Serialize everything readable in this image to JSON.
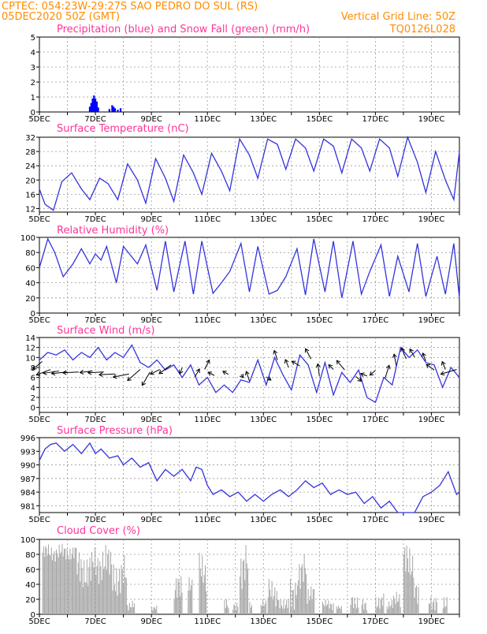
{
  "header": {
    "line1": "CPTEC:   054:23W-29:27S  SAO PEDRO DO SUL (RS)",
    "line2": "05DEC2020 50Z (GMT)",
    "grid_note": "Vertical Grid Line: 50Z",
    "code": "TQ0126L028"
  },
  "colors": {
    "precip": "#0000ff",
    "snow": "#00aa00",
    "line": "#3333dd",
    "cloud": "#a6a6a6",
    "title": "#ff3399",
    "header": "#ff8c00"
  },
  "x_axis": {
    "tick_labels": [
      "5DEC",
      "7DEC",
      "9DEC",
      "11DEC",
      "13DEC",
      "15DEC",
      "17DEC",
      "19DEC"
    ],
    "range_days": [
      5,
      20
    ]
  },
  "chart_data": [
    {
      "type": "bar",
      "title": "Precipitation (blue) and Snow Fall (green) (mm/h)",
      "ylim": [
        0,
        5
      ],
      "yticks": [
        "0",
        "1",
        "2",
        "3",
        "4",
        "5"
      ],
      "series": [
        {
          "name": "Precipitation",
          "points": [
            [
              6.8,
              0.35
            ],
            [
              6.85,
              0.6
            ],
            [
              6.9,
              0.9
            ],
            [
              6.95,
              1.1
            ],
            [
              7.0,
              0.9
            ],
            [
              7.05,
              0.7
            ],
            [
              7.1,
              0.3
            ],
            [
              7.5,
              0.2
            ],
            [
              7.6,
              0.45
            ],
            [
              7.65,
              0.35
            ],
            [
              7.7,
              0.25
            ],
            [
              7.8,
              0.15
            ],
            [
              7.9,
              0.25
            ]
          ]
        },
        {
          "name": "Snow Fall",
          "points": []
        }
      ]
    },
    {
      "type": "line",
      "title": "Surface Temperature (nC)",
      "ylim": [
        11,
        32
      ],
      "yticks": [
        "12",
        "16",
        "20",
        "24",
        "28",
        "32"
      ],
      "x": [
        5,
        5.2,
        5.5,
        5.8,
        6.15,
        6.5,
        6.8,
        7.15,
        7.45,
        7.8,
        8.15,
        8.5,
        8.8,
        9.15,
        9.5,
        9.8,
        10.15,
        10.5,
        10.8,
        11.15,
        11.5,
        11.8,
        12.15,
        12.5,
        12.8,
        13.15,
        13.5,
        13.8,
        14.15,
        14.5,
        14.8,
        15.15,
        15.5,
        15.8,
        16.15,
        16.5,
        16.8,
        17.15,
        17.5,
        17.8,
        18.15,
        18.5,
        18.8,
        19.15,
        19.5,
        19.8,
        20
      ],
      "values": [
        17.5,
        13.2,
        11.5,
        19.5,
        22.0,
        17.5,
        14.5,
        20.5,
        19.0,
        14.5,
        24.5,
        20.0,
        13.5,
        26.0,
        20.5,
        14.0,
        27.0,
        22.0,
        16.0,
        27.5,
        22.5,
        17.0,
        31.5,
        27.0,
        20.5,
        31.5,
        30.0,
        23.0,
        31.5,
        29.0,
        22.5,
        31.5,
        29.5,
        22.0,
        31.5,
        29.0,
        22.5,
        31.5,
        29.0,
        21.0,
        32.0,
        25.0,
        16.5,
        28.0,
        20.0,
        14.5,
        28.0
      ]
    },
    {
      "type": "line",
      "title": "Relative Humidity (%)",
      "ylim": [
        0,
        100
      ],
      "yticks": [
        "0",
        "20",
        "40",
        "60",
        "80",
        "100"
      ],
      "x": [
        5,
        5.3,
        5.55,
        5.85,
        6.2,
        6.5,
        6.8,
        7.0,
        7.2,
        7.4,
        7.75,
        8.0,
        8.5,
        8.8,
        9.2,
        9.5,
        9.8,
        10.2,
        10.5,
        10.8,
        11.2,
        11.5,
        11.8,
        12.2,
        12.5,
        12.8,
        13.2,
        13.5,
        13.8,
        14.2,
        14.5,
        14.8,
        15.2,
        15.5,
        15.8,
        16.2,
        16.5,
        16.8,
        17.2,
        17.5,
        17.8,
        18.2,
        18.5,
        18.8,
        19.2,
        19.5,
        19.8,
        20
      ],
      "values": [
        60,
        98,
        80,
        48,
        65,
        85,
        65,
        78,
        70,
        88,
        40,
        88,
        65,
        90,
        30,
        95,
        28,
        95,
        25,
        95,
        26,
        40,
        55,
        92,
        28,
        88,
        25,
        30,
        48,
        85,
        24,
        98,
        28,
        95,
        20,
        95,
        25,
        55,
        90,
        22,
        75,
        28,
        92,
        22,
        75,
        25,
        92,
        20
      ]
    },
    {
      "type": "line",
      "title": "Surface Wind (m/s)",
      "ylim": [
        -1,
        14
      ],
      "yticks": [
        "0",
        "2",
        "4",
        "6",
        "8",
        "10",
        "12",
        "14"
      ],
      "x": [
        5,
        5.3,
        5.6,
        5.9,
        6.2,
        6.5,
        6.8,
        7.1,
        7.4,
        7.7,
        8.0,
        8.3,
        8.6,
        8.9,
        9.2,
        9.5,
        9.8,
        10.1,
        10.4,
        10.7,
        11.0,
        11.3,
        11.6,
        11.9,
        12.2,
        12.5,
        12.8,
        13.1,
        13.4,
        13.7,
        14.0,
        14.3,
        14.6,
        14.9,
        15.2,
        15.5,
        15.8,
        16.1,
        16.4,
        16.7,
        17.0,
        17.3,
        17.6,
        17.9,
        18.2,
        18.5,
        18.8,
        19.1,
        19.4,
        19.7,
        20
      ],
      "values": [
        9.5,
        11.0,
        10.5,
        11.5,
        9.5,
        11.0,
        10.0,
        12.0,
        9.5,
        11.0,
        10.0,
        12.5,
        9.0,
        8.0,
        9.5,
        7.5,
        8.5,
        6.0,
        8.5,
        4.5,
        6.0,
        3.0,
        4.5,
        3.0,
        5.5,
        5.0,
        9.5,
        4.5,
        10.0,
        6.5,
        3.5,
        10.5,
        8.5,
        3.0,
        9.0,
        2.5,
        7.0,
        5.0,
        7.5,
        2.0,
        1.0,
        6.0,
        4.5,
        12.0,
        10.0,
        11.5,
        9.0,
        8.5,
        4.0,
        8.0,
        6.0
      ],
      "vectors": [
        [
          5.1,
          9.2,
          -0.6,
          0.5
        ],
        [
          5.4,
          7.6,
          -0.9,
          0.35
        ],
        [
          5.7,
          7.3,
          -1.0,
          0.15
        ],
        [
          6.0,
          7.1,
          -1.0,
          0.1
        ],
        [
          6.4,
          7.1,
          -1.0,
          0.05
        ],
        [
          6.9,
          7.3,
          -0.8,
          0.1
        ],
        [
          7.3,
          7.1,
          -1.0,
          0.05
        ],
        [
          7.7,
          6.7,
          -1.0,
          0.05
        ],
        [
          8.2,
          6.7,
          -1.0,
          0.2
        ],
        [
          8.6,
          7.6,
          -0.8,
          0.7
        ],
        [
          8.95,
          7.1,
          -0.5,
          0.85
        ],
        [
          9.3,
          7.6,
          -0.6,
          0.3
        ],
        [
          9.7,
          8.5,
          -0.75,
          0.55
        ],
        [
          10.1,
          8.0,
          -0.15,
          0.4
        ],
        [
          10.55,
          6.1,
          0.3,
          -0.5
        ],
        [
          10.9,
          7.6,
          0.3,
          -0.6
        ],
        [
          11.25,
          6.4,
          -0.4,
          -0.2
        ],
        [
          11.75,
          6.6,
          -0.35,
          -0.2
        ],
        [
          12.2,
          6.6,
          0.15,
          0.2
        ],
        [
          12.5,
          5.3,
          -0.2,
          -0.6
        ],
        [
          13.1,
          6.1,
          0.3,
          0.2
        ],
        [
          13.5,
          9.5,
          -0.2,
          -0.6
        ],
        [
          13.9,
          8.0,
          -0.2,
          -0.5
        ],
        [
          14.3,
          8.3,
          -0.5,
          -0.3
        ],
        [
          14.7,
          9.7,
          -0.35,
          -0.65
        ],
        [
          15.0,
          6.2,
          -0.1,
          -0.8
        ],
        [
          15.5,
          7.6,
          -0.3,
          -0.3
        ],
        [
          15.9,
          7.5,
          -0.5,
          -0.6
        ],
        [
          16.3,
          6.2,
          0.35,
          0.3
        ],
        [
          16.7,
          6.3,
          -0.4,
          -0.15
        ],
        [
          17.0,
          7.4,
          -0.35,
          0.3
        ],
        [
          17.35,
          5.9,
          0.25,
          -0.8
        ],
        [
          17.75,
          8.3,
          -0.15,
          -0.75
        ],
        [
          18.1,
          9.7,
          -0.3,
          -0.7
        ],
        [
          18.4,
          10.1,
          -0.3,
          -0.5
        ],
        [
          18.8,
          9.3,
          -0.2,
          -0.5
        ],
        [
          19.1,
          7.5,
          -0.5,
          -0.35
        ],
        [
          19.5,
          7.6,
          -0.2,
          -0.5
        ],
        [
          19.9,
          7.6,
          -1.0,
          0.3
        ]
      ]
    },
    {
      "type": "line",
      "title": "Surface Pressure (hPa)",
      "ylim": [
        979.5,
        996
      ],
      "yticks": [
        "981",
        "984",
        "987",
        "990",
        "993",
        "996"
      ],
      "x": [
        5,
        5.2,
        5.4,
        5.6,
        5.9,
        6.2,
        6.5,
        6.8,
        7.0,
        7.2,
        7.5,
        7.8,
        8.0,
        8.3,
        8.6,
        8.9,
        9.2,
        9.5,
        9.8,
        10.1,
        10.4,
        10.6,
        10.8,
        11.0,
        11.2,
        11.5,
        11.8,
        12.1,
        12.4,
        12.7,
        13.0,
        13.3,
        13.6,
        13.9,
        14.2,
        14.5,
        14.8,
        15.1,
        15.4,
        15.7,
        16.0,
        16.3,
        16.6,
        16.9,
        17.2,
        17.5,
        17.8,
        18.1,
        18.4,
        18.7,
        19.0,
        19.3,
        19.6,
        19.9,
        20
      ],
      "values": [
        991,
        993.5,
        994.5,
        994.8,
        993,
        994.5,
        992.5,
        994.8,
        992.5,
        993.5,
        991.5,
        992,
        990,
        991.5,
        989.5,
        990.5,
        986.5,
        989,
        987.5,
        989,
        986.5,
        989.5,
        989,
        985.5,
        983.5,
        984.5,
        983,
        984,
        982,
        983.5,
        982,
        983.5,
        984.5,
        983,
        984.5,
        986.5,
        985,
        986,
        983.5,
        984.5,
        983.5,
        984,
        981.5,
        983,
        980.5,
        982,
        979.5,
        979,
        979.5,
        983,
        984,
        985.5,
        988.5,
        983.5,
        984
      ]
    },
    {
      "type": "bar",
      "title": "Cloud Cover (%)",
      "ylim": [
        0,
        100
      ],
      "yticks": [
        "0",
        "20",
        "40",
        "60",
        "80",
        "100"
      ],
      "segments": [
        [
          5.1,
          6.3,
          70,
          95
        ],
        [
          6.3,
          6.9,
          30,
          90
        ],
        [
          6.9,
          7.6,
          40,
          95
        ],
        [
          7.6,
          8.1,
          20,
          80
        ],
        [
          8.1,
          8.4,
          5,
          20
        ],
        [
          9.0,
          9.2,
          5,
          12
        ],
        [
          9.8,
          10.1,
          10,
          55
        ],
        [
          10.3,
          10.45,
          20,
          50
        ],
        [
          10.7,
          10.95,
          30,
          85
        ],
        [
          11.6,
          11.75,
          5,
          25
        ],
        [
          11.9,
          12.1,
          5,
          20
        ],
        [
          12.15,
          12.45,
          30,
          98
        ],
        [
          12.5,
          12.6,
          5,
          20
        ],
        [
          12.9,
          13.1,
          5,
          20
        ],
        [
          13.15,
          13.5,
          10,
          50
        ],
        [
          13.5,
          13.9,
          5,
          25
        ],
        [
          13.95,
          14.2,
          5,
          60
        ],
        [
          14.2,
          14.55,
          30,
          85
        ],
        [
          14.55,
          14.8,
          10,
          40
        ],
        [
          15.1,
          15.5,
          5,
          20
        ],
        [
          15.6,
          15.8,
          5,
          12
        ],
        [
          16.1,
          16.4,
          5,
          30
        ],
        [
          16.5,
          16.7,
          5,
          25
        ],
        [
          17.0,
          17.3,
          5,
          30
        ],
        [
          17.4,
          17.6,
          5,
          20
        ],
        [
          17.6,
          17.9,
          5,
          30
        ],
        [
          18.0,
          18.35,
          40,
          98
        ],
        [
          18.35,
          18.55,
          10,
          50
        ],
        [
          18.9,
          19.2,
          5,
          30
        ],
        [
          19.4,
          19.55,
          5,
          30
        ]
      ]
    }
  ]
}
